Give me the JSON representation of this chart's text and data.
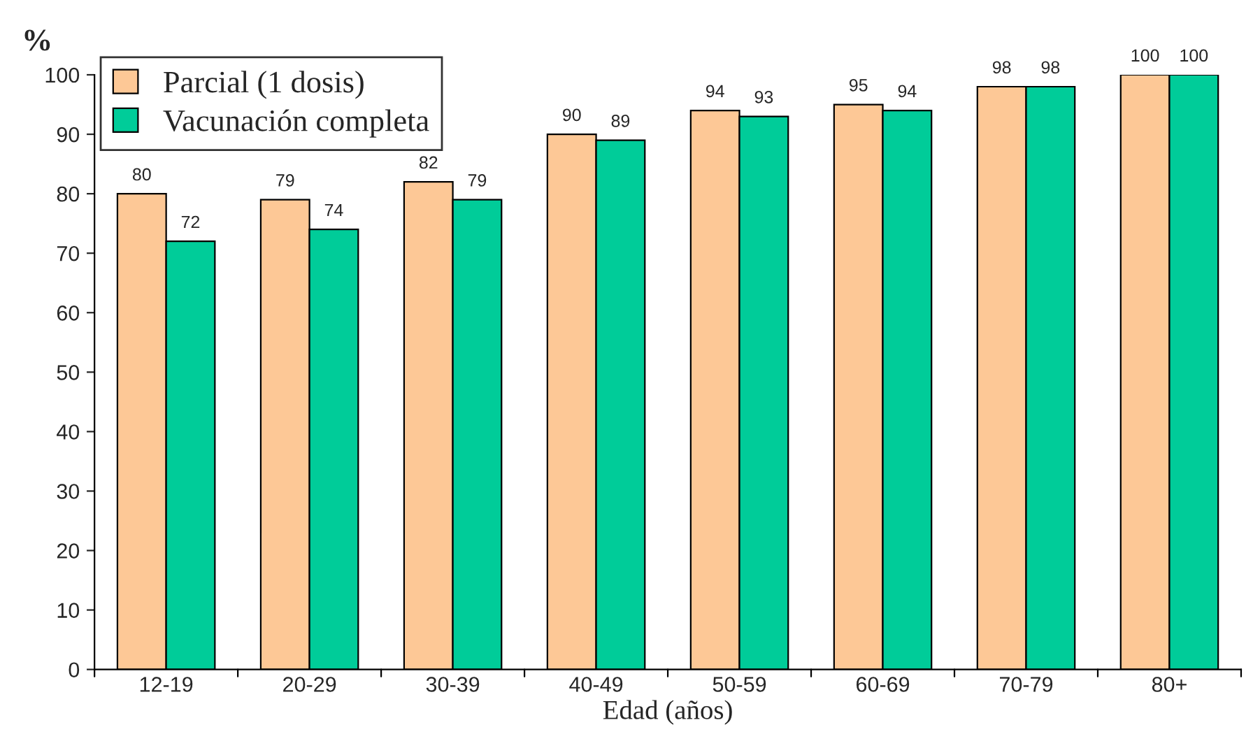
{
  "chart_data": {
    "type": "bar",
    "ylabel": "%",
    "xlabel": "Edad (años)",
    "categories": [
      "12-19",
      "20-29",
      "30-39",
      "40-49",
      "50-59",
      "60-69",
      "70-79",
      "80+"
    ],
    "series": [
      {
        "name": "Parcial (1 dosis)",
        "color": "#fdc896",
        "values": [
          80,
          79,
          82,
          90,
          94,
          95,
          98,
          100
        ]
      },
      {
        "name": "Vacunación completa",
        "color": "#00cc99",
        "values": [
          72,
          74,
          79,
          89,
          93,
          94,
          98,
          100
        ]
      }
    ],
    "ylim": [
      0,
      100
    ],
    "yticks": [
      0,
      10,
      20,
      30,
      40,
      50,
      60,
      70,
      80,
      90,
      100
    ],
    "data_labels": true,
    "grid": false,
    "legend": "top left"
  }
}
